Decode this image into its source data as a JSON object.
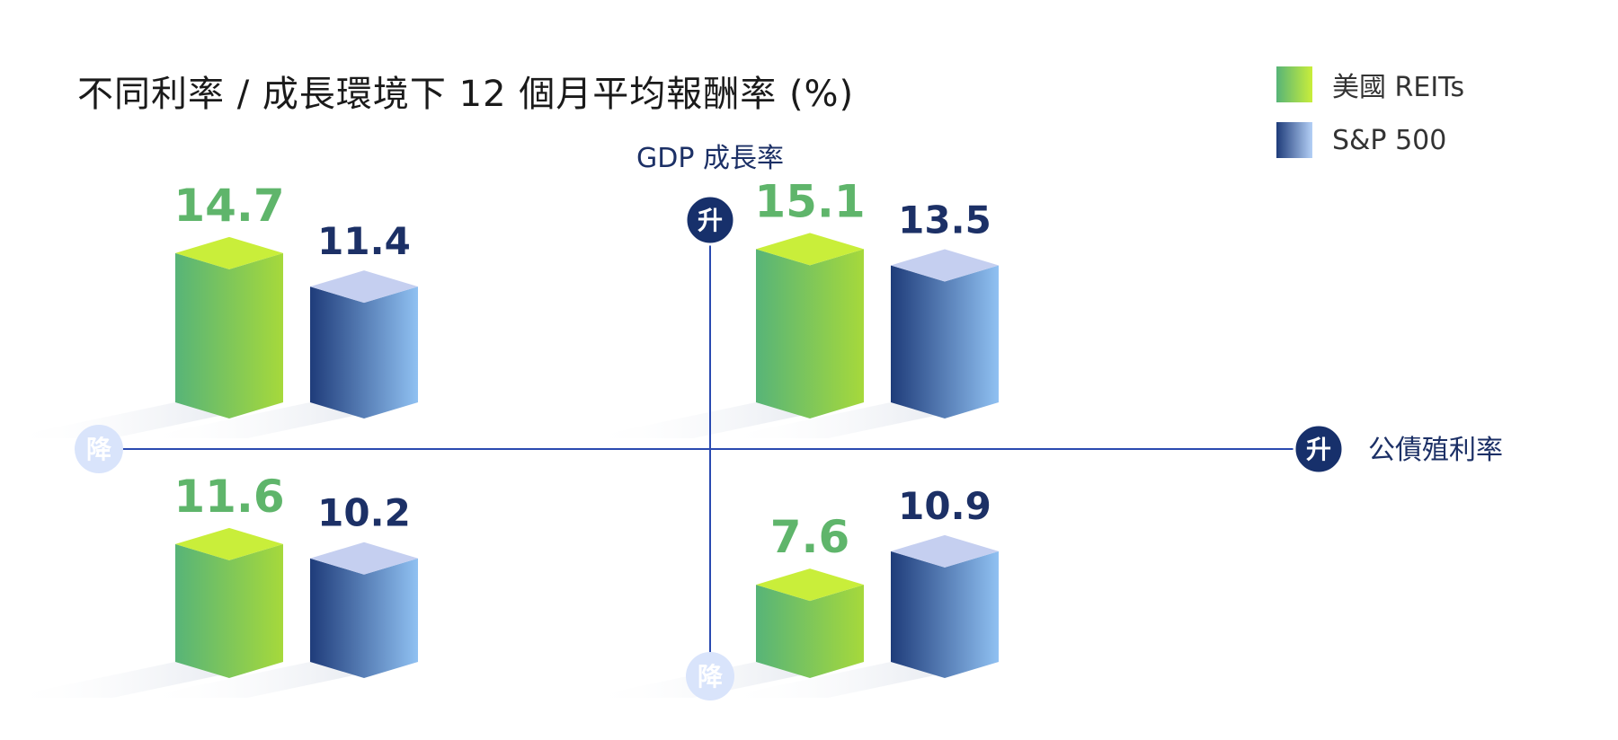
{
  "chart_data": {
    "type": "bar",
    "title": "不同利率 / 成長環境下 12 個月平均報酬率 (%)",
    "y_axis_label": "GDP 成長率",
    "x_axis_label": "公債殖利率",
    "axis_ends": {
      "y_up": "升",
      "y_down": "降",
      "x_up": "升",
      "x_down": "降"
    },
    "series": [
      {
        "name": "美國 REITs",
        "color_front": [
          "#57b478",
          "#a6d93b"
        ],
        "color_top": "#c9ee3a"
      },
      {
        "name": "S&P 500",
        "color_front": [
          "#1f3c7a",
          "#90c1f2"
        ],
        "color_top": "#c5cff0"
      }
    ],
    "quadrants": [
      {
        "position": "top-left",
        "gdp": "升",
        "yield": "降",
        "values": [
          14.7,
          11.4
        ]
      },
      {
        "position": "top-right",
        "gdp": "升",
        "yield": "升",
        "values": [
          15.1,
          13.5
        ]
      },
      {
        "position": "bottom-left",
        "gdp": "降",
        "yield": "降",
        "values": [
          11.6,
          10.2
        ]
      },
      {
        "position": "bottom-right",
        "gdp": "降",
        "yield": "升",
        "values": [
          7.6,
          10.9
        ]
      }
    ],
    "value_colors": [
      "#5fb56b",
      "#1c3066"
    ],
    "axis_color": "#2a4ab0",
    "badge_dark": "#17306b",
    "badge_light": "#d9e4fb"
  }
}
